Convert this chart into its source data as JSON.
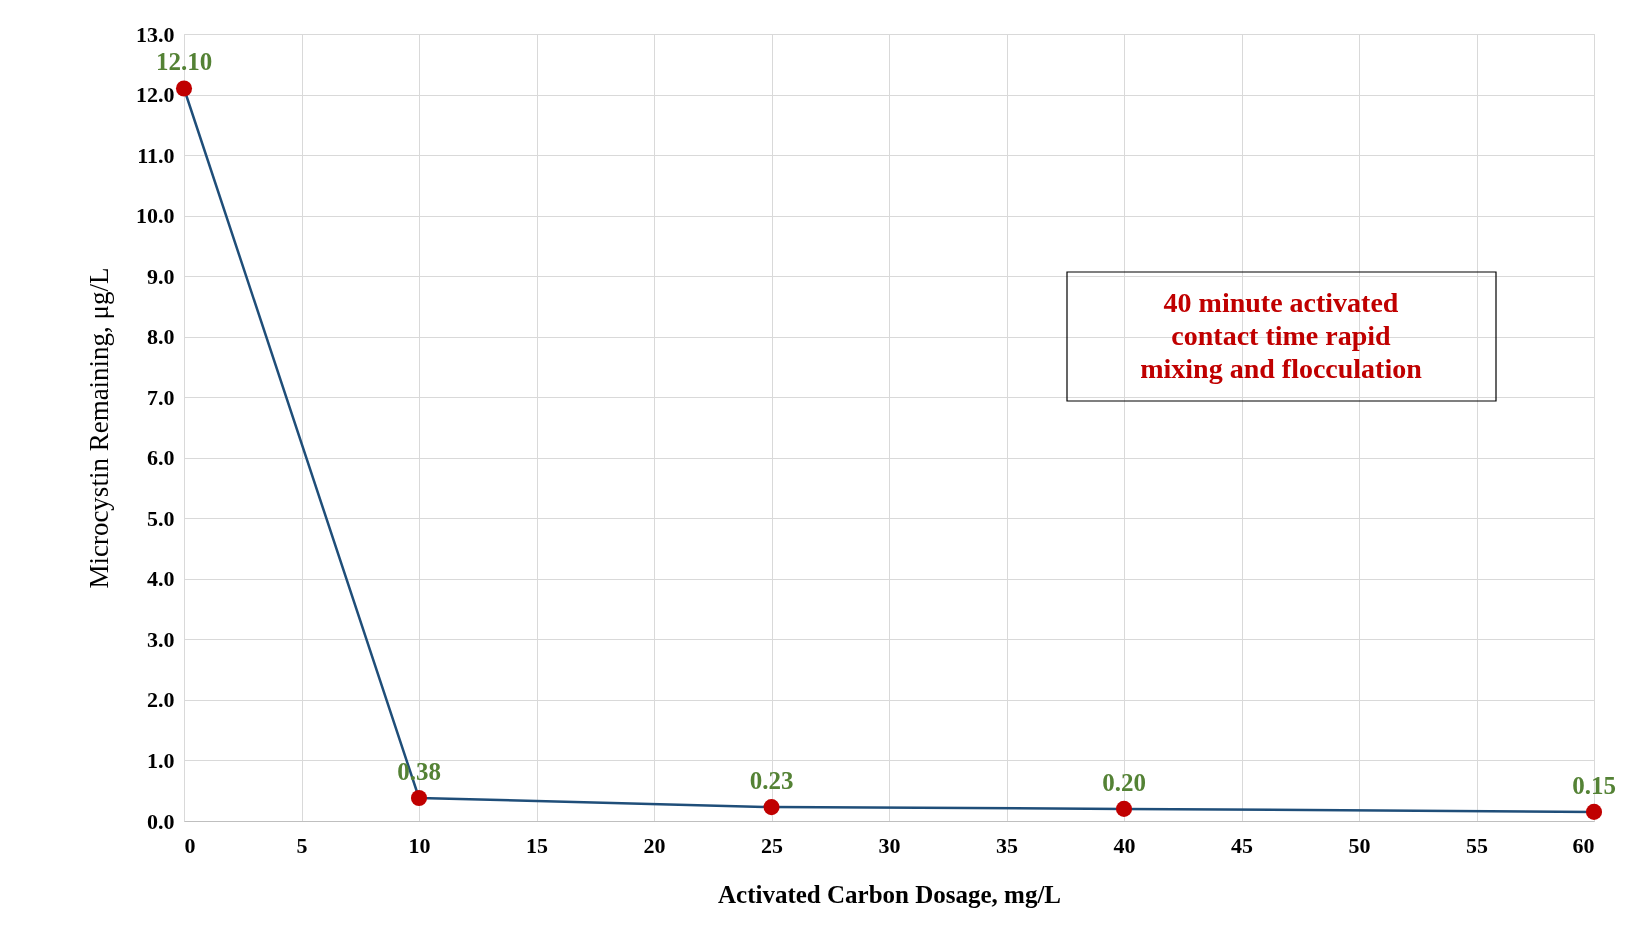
{
  "chart_data": {
    "type": "line",
    "xlabel": "Activated Carbon Dosage, mg/L",
    "ylabel": "Microcystin Remaining, μg/L",
    "x": [
      0,
      10,
      25,
      40,
      60
    ],
    "series": [
      {
        "color": "#1f4e79",
        "values": [
          12.1,
          0.38,
          0.23,
          0.2,
          0.15
        ],
        "value_labels": [
          "12.10",
          "0.38",
          "0.23",
          "0.20",
          "0.15"
        ]
      }
    ],
    "xlim": [
      0,
      60
    ],
    "xticks": [
      0,
      5,
      10,
      15,
      20,
      25,
      30,
      35,
      40,
      45,
      50,
      55,
      60
    ],
    "ylim": [
      0,
      13
    ],
    "yticks": [
      {
        "value": 0,
        "label": "0.0"
      },
      {
        "value": 1,
        "label": "1.0"
      },
      {
        "value": 2,
        "label": "2.0"
      },
      {
        "value": 3,
        "label": "3.0"
      },
      {
        "value": 4,
        "label": "4.0"
      },
      {
        "value": 5,
        "label": "5.0"
      },
      {
        "value": 6,
        "label": "6.0"
      },
      {
        "value": 7,
        "label": "7.0"
      },
      {
        "value": 8,
        "label": "8.0"
      },
      {
        "value": 9,
        "label": "9.0"
      },
      {
        "value": 10,
        "label": "10.0"
      },
      {
        "value": 11,
        "label": "11.0"
      },
      {
        "value": 12,
        "label": "12.0"
      },
      {
        "value": 13,
        "label": "13.0"
      }
    ],
    "grid": true,
    "marker": "circle",
    "line_style": "solid",
    "annotations": [
      "40 minute activated contact time rapid mixing and flocculation"
    ]
  }
}
